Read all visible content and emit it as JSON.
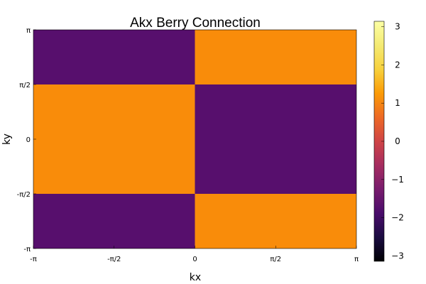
{
  "chart_data": {
    "type": "heatmap",
    "title": "Akx Berry Connection",
    "xlabel": "kx",
    "ylabel": "ky",
    "x_ticks": [
      "-π",
      "-π/2",
      "0",
      "π/2",
      "π"
    ],
    "y_ticks": [
      "-π",
      "-π/2",
      "0",
      "π/2",
      "π"
    ],
    "x_range": [
      -3.1416,
      3.1416
    ],
    "y_range": [
      -3.1416,
      3.1416
    ],
    "colormap": "inferno",
    "colorbar": {
      "range": [
        -3.1416,
        3.1416
      ],
      "ticks": [
        "−3",
        "−2",
        "−1",
        "0",
        "1",
        "2",
        "3"
      ],
      "tick_values": [
        -3,
        -2,
        -1,
        0,
        1,
        2,
        3
      ]
    },
    "regions": [
      {
        "x": [
          -3.1416,
          0
        ],
        "y": [
          1.5708,
          3.1416
        ],
        "value": -1.5708
      },
      {
        "x": [
          0,
          3.1416
        ],
        "y": [
          1.5708,
          3.1416
        ],
        "value": 1.5708
      },
      {
        "x": [
          -3.1416,
          0
        ],
        "y": [
          -1.5708,
          1.5708
        ],
        "value": 1.5708
      },
      {
        "x": [
          0,
          3.1416
        ],
        "y": [
          -1.5708,
          1.5708
        ],
        "value": -1.5708
      },
      {
        "x": [
          -3.1416,
          0
        ],
        "y": [
          -3.1416,
          -1.5708
        ],
        "value": -1.5708
      },
      {
        "x": [
          0,
          3.1416
        ],
        "y": [
          -3.1416,
          -1.5708
        ],
        "value": 1.5708
      }
    ],
    "colors": {
      "positive": "#f98c0a",
      "negative": "#570f6d"
    },
    "grid": false
  }
}
